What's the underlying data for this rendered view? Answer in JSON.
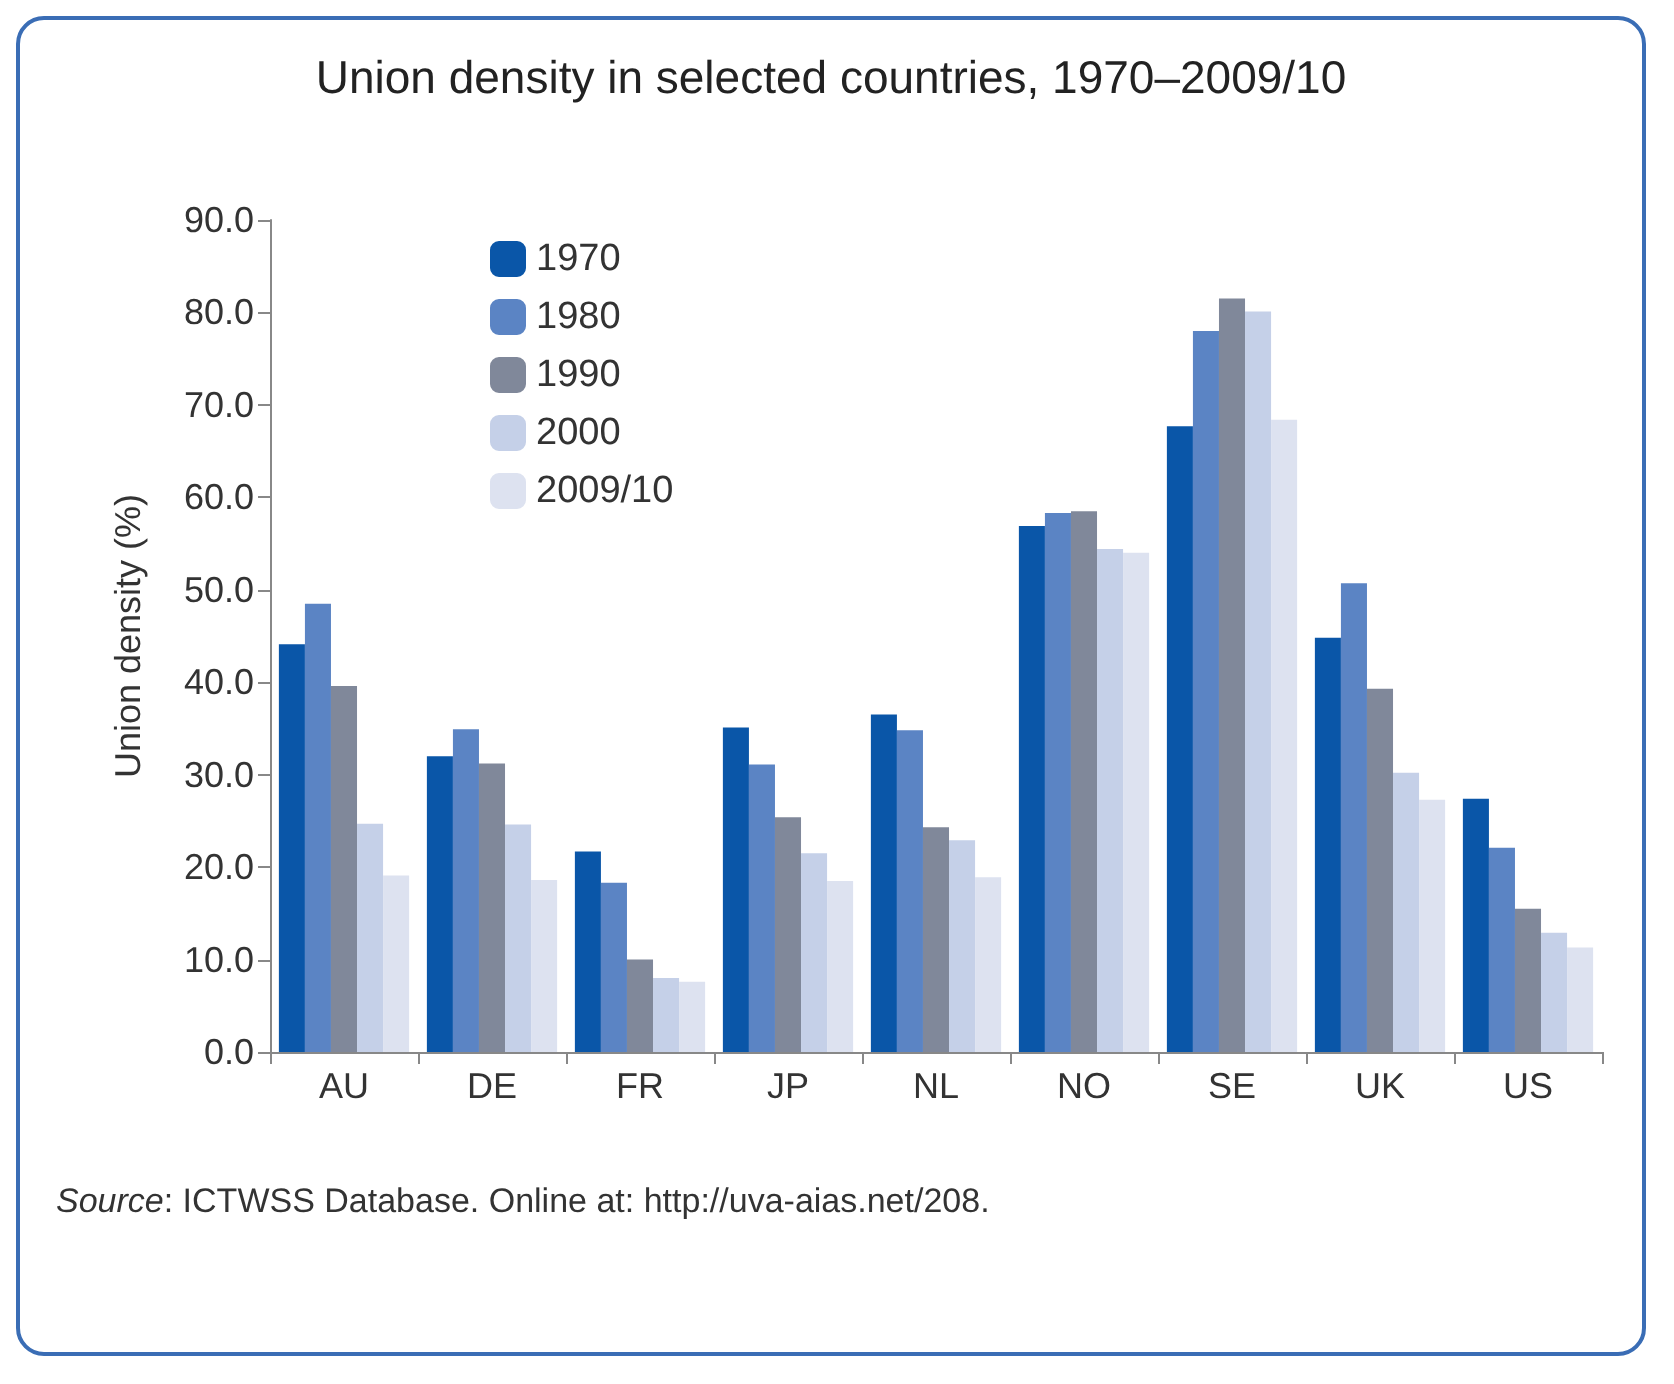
{
  "chart_data": {
    "type": "bar",
    "title": "Union density in selected countries, 1970–2009/10",
    "ylabel": "Union density (%)",
    "categories": [
      "AU",
      "DE",
      "FR",
      "JP",
      "NL",
      "NO",
      "SE",
      "UK",
      "US"
    ],
    "series": [
      {
        "name": "1970",
        "color": "#0a56a8",
        "values": [
          44.1,
          32.0,
          21.7,
          35.1,
          36.5,
          56.9,
          67.7,
          44.8,
          27.4
        ]
      },
      {
        "name": "1980",
        "color": "#5b84c4",
        "values": [
          48.5,
          34.9,
          18.3,
          31.1,
          34.8,
          58.3,
          78.0,
          50.7,
          22.1
        ]
      },
      {
        "name": "1990",
        "color": "#80889a",
        "values": [
          39.6,
          31.2,
          10.0,
          25.4,
          24.3,
          58.5,
          81.5,
          39.3,
          15.5
        ]
      },
      {
        "name": "2000",
        "color": "#c5d0e8",
        "values": [
          24.7,
          24.6,
          8.0,
          21.5,
          22.9,
          54.4,
          80.1,
          30.2,
          12.9
        ]
      },
      {
        "name": "2009/10",
        "color": "#dde2f0",
        "values": [
          19.1,
          18.6,
          7.6,
          18.5,
          18.9,
          54.0,
          68.4,
          27.3,
          11.3
        ]
      }
    ],
    "ylim": [
      0,
      90
    ],
    "yticks": [
      {
        "value": 0,
        "label": "0.0"
      },
      {
        "value": 10,
        "label": "10.0"
      },
      {
        "value": 20,
        "label": "20.0"
      },
      {
        "value": 30,
        "label": "30.0"
      },
      {
        "value": 40,
        "label": "40.0"
      },
      {
        "value": 50,
        "label": "50.0"
      },
      {
        "value": 60,
        "label": "60.0"
      },
      {
        "value": 70,
        "label": "70.0"
      },
      {
        "value": 80,
        "label": "80.0"
      },
      {
        "value": 90,
        "label": "90.0"
      }
    ],
    "legend": "top left",
    "annotations": [
      "Source: ICTWSS Database. Online at: http://uva-aias.net/208."
    ]
  }
}
